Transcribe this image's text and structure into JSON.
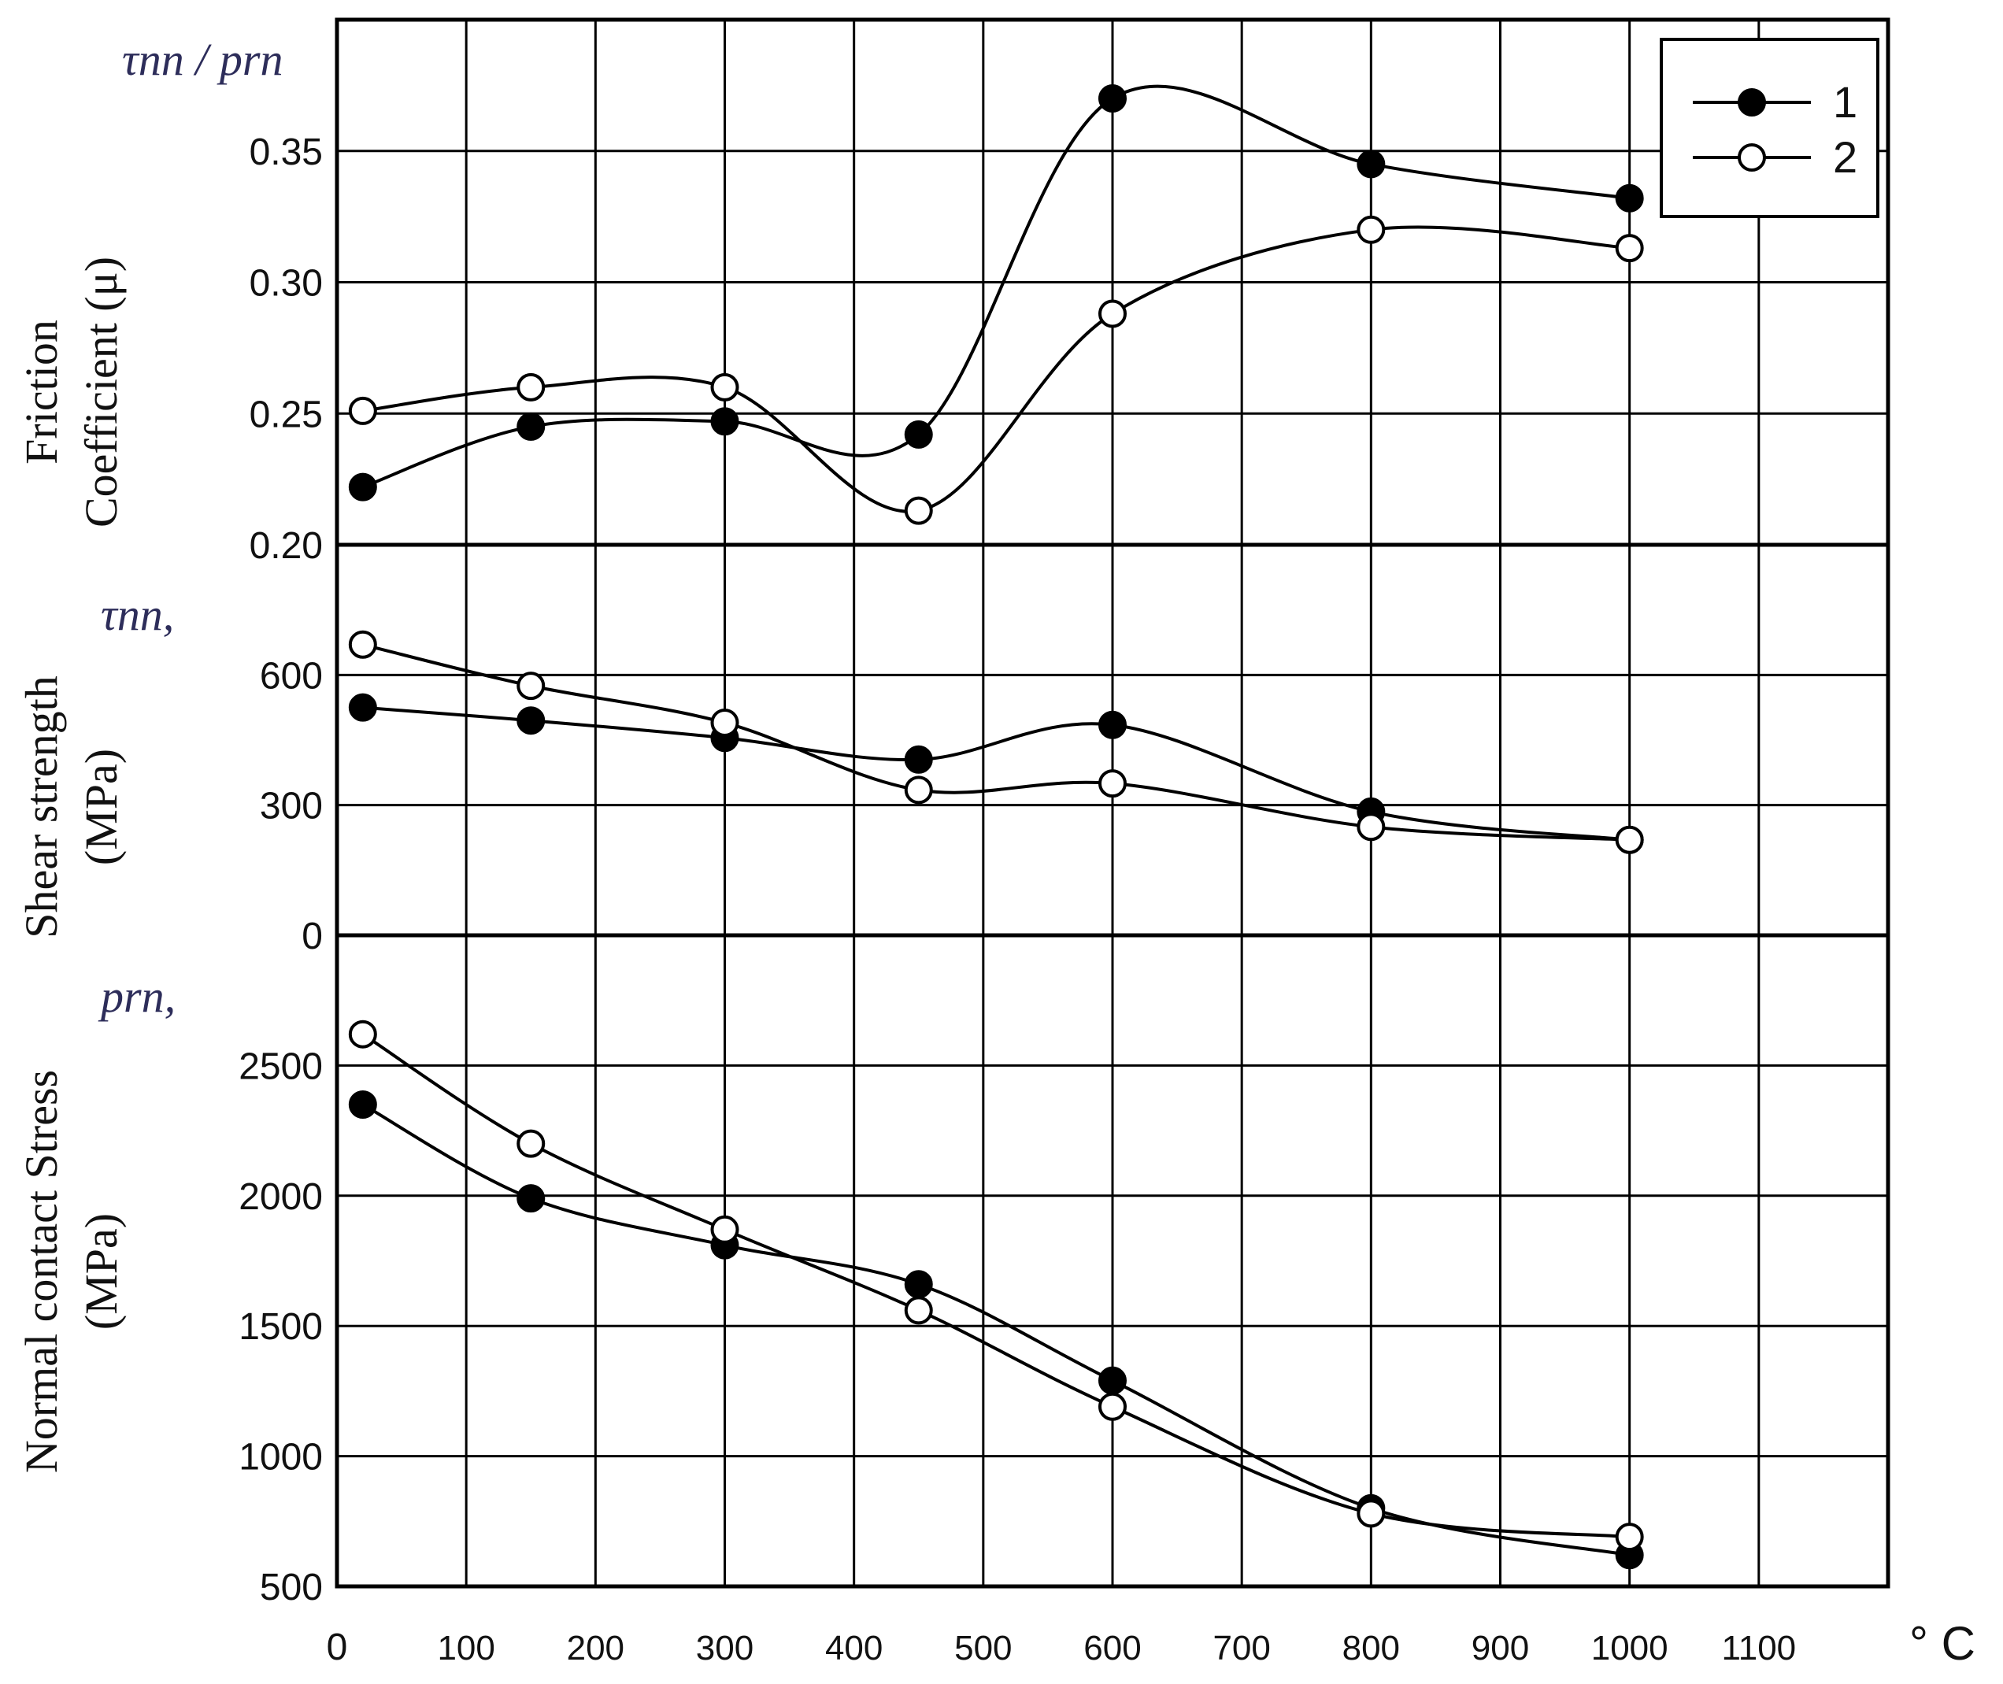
{
  "chart_data": {
    "type": "line",
    "x_unit": "° C",
    "x_ticks": [
      0,
      100,
      200,
      300,
      400,
      500,
      600,
      700,
      800,
      900,
      1000,
      1100
    ],
    "xlim": [
      0,
      1200
    ],
    "legend": {
      "placement": "top-right",
      "entries": [
        "1",
        "2"
      ]
    },
    "panels": [
      {
        "id": "friction",
        "symbol": "τnn / prn",
        "ylabel_lines": [
          "Friction",
          "Coefficient (μ)"
        ],
        "ylim": [
          0.2,
          0.4
        ],
        "y_ticks": [
          "0.20",
          "0.25",
          "0.30",
          "0.35"
        ],
        "grid": true,
        "x": [
          20,
          150,
          300,
          450,
          600,
          800,
          1000
        ],
        "series": [
          {
            "name": "1",
            "marker": "filled",
            "values": [
              0.222,
              0.245,
              0.247,
              0.242,
              0.37,
              0.345,
              0.332
            ]
          },
          {
            "name": "2",
            "marker": "open",
            "values": [
              0.251,
              0.26,
              0.26,
              0.213,
              0.288,
              0.32,
              0.313
            ]
          }
        ]
      },
      {
        "id": "shear",
        "symbol": "τnn,",
        "ylabel_lines": [
          "Shear strength",
          "(MPa)"
        ],
        "ylim": [
          0,
          900
        ],
        "y_ticks": [
          "0",
          "300",
          "600"
        ],
        "grid": true,
        "x": [
          20,
          150,
          300,
          450,
          600,
          800,
          1000
        ],
        "series": [
          {
            "name": "1",
            "marker": "filled",
            "values": [
              525,
              495,
              455,
              405,
              485,
              285,
              220
            ]
          },
          {
            "name": "2",
            "marker": "open",
            "values": [
              670,
              575,
              490,
              335,
              350,
              250,
              220
            ]
          }
        ]
      },
      {
        "id": "normal",
        "symbol": "prn,",
        "ylabel_lines": [
          "Normal contact Stress",
          "(MPa)"
        ],
        "ylim": [
          500,
          3000
        ],
        "y_ticks": [
          "500",
          "1000",
          "1500",
          "2000",
          "2500"
        ],
        "grid": true,
        "x": [
          20,
          150,
          300,
          450,
          600,
          800,
          1000
        ],
        "series": [
          {
            "name": "1",
            "marker": "filled",
            "values": [
              2350,
              1990,
              1810,
              1660,
              1290,
              800,
              620
            ]
          },
          {
            "name": "2",
            "marker": "open",
            "values": [
              2620,
              2200,
              1870,
              1560,
              1190,
              780,
              690
            ]
          }
        ]
      }
    ]
  }
}
